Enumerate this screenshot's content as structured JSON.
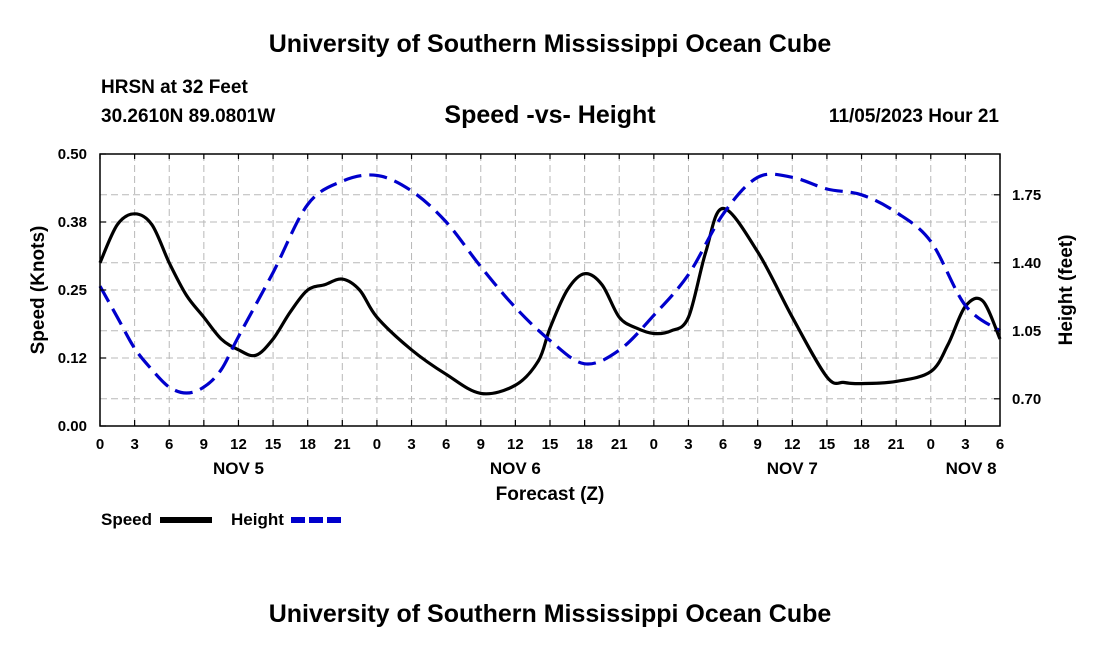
{
  "header": {
    "title": "University of Southern Mississippi Ocean Cube",
    "station": "HRSN at 32 Feet",
    "latlon": "30.2610N  89.0801W",
    "subtitle": "Speed -vs- Height",
    "timestamp": "11/05/2023 Hour 21"
  },
  "footer": {
    "title": "University of Southern Mississippi Ocean Cube"
  },
  "chart_data": {
    "type": "line",
    "xlabel": "Forecast (Z)",
    "ylabel_left": "Speed (Knots)",
    "ylabel_right": "Height (feet)",
    "x_range_hours": [
      0,
      78
    ],
    "x_ticks": [
      "0",
      "3",
      "6",
      "9",
      "12",
      "15",
      "18",
      "21",
      "0",
      "3",
      "6",
      "9",
      "12",
      "15",
      "18",
      "21",
      "0",
      "3",
      "6",
      "9",
      "12",
      "15",
      "18",
      "21",
      "0",
      "3",
      "6"
    ],
    "day_labels": [
      {
        "label": "NOV 5",
        "hour": 12
      },
      {
        "label": "NOV 6",
        "hour": 36
      },
      {
        "label": "NOV 7",
        "hour": 60
      },
      {
        "label": "NOV 8",
        "hour": 75.5
      }
    ],
    "y_left": {
      "range": [
        0,
        0.5
      ],
      "ticks": [
        "0.00",
        "0.12",
        "0.25",
        "0.38",
        "0.50"
      ],
      "tick_values": [
        0,
        0.125,
        0.25,
        0.375,
        0.5
      ]
    },
    "y_right": {
      "range": [
        0.56,
        1.96
      ],
      "ticks": [
        "0.70",
        "1.05",
        "1.40",
        "1.75"
      ],
      "tick_values": [
        0.7,
        1.05,
        1.4,
        1.75
      ]
    },
    "grid": true,
    "series": [
      {
        "name": "Speed",
        "axis": "left",
        "color": "#000000",
        "dash": "solid",
        "x": [
          0,
          1.5,
          3,
          4.5,
          6,
          7.5,
          9,
          10.5,
          12,
          13.5,
          15,
          16.5,
          18,
          19.5,
          21,
          22.5,
          24,
          27,
          30,
          33,
          36,
          38,
          39,
          40.5,
          42,
          43.5,
          45,
          46.5,
          48,
          49.5,
          51,
          52.5,
          54,
          57,
          60,
          63,
          64.5,
          66,
          69,
          72,
          73.5,
          75,
          76.5,
          78
        ],
        "values": [
          0.3,
          0.37,
          0.39,
          0.37,
          0.3,
          0.24,
          0.2,
          0.16,
          0.14,
          0.13,
          0.16,
          0.21,
          0.25,
          0.26,
          0.27,
          0.25,
          0.2,
          0.14,
          0.095,
          0.06,
          0.075,
          0.12,
          0.18,
          0.25,
          0.28,
          0.26,
          0.2,
          0.18,
          0.17,
          0.175,
          0.2,
          0.32,
          0.4,
          0.32,
          0.2,
          0.09,
          0.08,
          0.078,
          0.082,
          0.1,
          0.15,
          0.22,
          0.23,
          0.16
        ]
      },
      {
        "name": "Height",
        "axis": "right",
        "color": "#0000cc",
        "dash": "dashed",
        "x": [
          0,
          1.5,
          3,
          4.5,
          6,
          7.5,
          9,
          10.5,
          12,
          15,
          18,
          21,
          24,
          27,
          30,
          33,
          36,
          39,
          42,
          45,
          48,
          51,
          54,
          57,
          60,
          63,
          66,
          69,
          72,
          75,
          78
        ],
        "values": [
          1.28,
          1.12,
          0.96,
          0.85,
          0.76,
          0.73,
          0.76,
          0.85,
          1.02,
          1.35,
          1.7,
          1.82,
          1.85,
          1.77,
          1.61,
          1.38,
          1.17,
          1.0,
          0.88,
          0.95,
          1.13,
          1.34,
          1.65,
          1.84,
          1.84,
          1.78,
          1.75,
          1.66,
          1.51,
          1.18,
          1.05
        ]
      }
    ],
    "legend": {
      "placement": "bottom-left",
      "entries": [
        {
          "label": "Speed",
          "color": "#000000",
          "dash": "solid"
        },
        {
          "label": "Height",
          "color": "#0000cc",
          "dash": "dashed"
        }
      ]
    }
  }
}
